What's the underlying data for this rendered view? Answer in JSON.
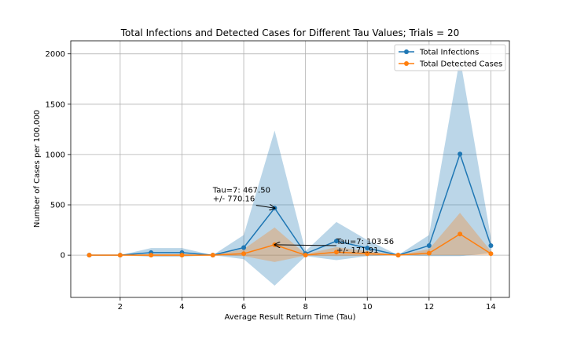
{
  "chart_data": {
    "type": "line",
    "title": "Total Infections and Detected Cases for Different Tau Values; Trials = 20",
    "xlabel": "Average Result Return Time (Tau)",
    "ylabel": "Number of Cases per 100,000",
    "xlim": [
      0.4,
      14.6
    ],
    "ylim": [
      -420,
      2130
    ],
    "xticks": [
      2,
      4,
      6,
      8,
      10,
      12,
      14
    ],
    "yticks": [
      0,
      500,
      1000,
      1500,
      2000
    ],
    "ytick_labels": [
      "0",
      "500",
      "1000",
      "1500",
      "2000"
    ],
    "grid": true,
    "legend_position": "top-right",
    "x": [
      1,
      2,
      3,
      4,
      5,
      6,
      7,
      8,
      9,
      10,
      11,
      12,
      13,
      14
    ],
    "series": [
      {
        "name": "Total Infections",
        "color": "#1f77b4",
        "values": [
          0,
          0,
          25,
          25,
          0,
          75,
          467.5,
          15,
          140,
          70,
          0,
          95,
          1005,
          95
        ],
        "band_lower": [
          0,
          0,
          -15,
          -15,
          0,
          -40,
          -302.66,
          -10,
          -50,
          -10,
          0,
          -10,
          -10,
          20
        ],
        "band_upper": [
          0,
          0,
          70,
          70,
          0,
          200,
          1237.66,
          40,
          330,
          150,
          0,
          200,
          1960,
          170
        ]
      },
      {
        "name": "Total Detected Cases",
        "color": "#ff7f0e",
        "values": [
          0,
          0,
          0,
          0,
          0,
          15,
          103.56,
          0,
          30,
          15,
          0,
          20,
          210,
          15
        ],
        "band_lower": [
          0,
          0,
          -10,
          -10,
          0,
          -10,
          -68.35,
          -5,
          -10,
          -5,
          0,
          0,
          0,
          5
        ],
        "band_upper": [
          0,
          0,
          10,
          10,
          0,
          60,
          275.47,
          10,
          80,
          40,
          0,
          60,
          420,
          40
        ]
      }
    ],
    "annotations": [
      {
        "line1": "Tau=7: 467.50",
        "line2": "+/- 770.16",
        "x": 7,
        "y": 467.5,
        "text_x": 5,
        "text_y": 620
      },
      {
        "line1": "Tau=7: 103.56",
        "line2": "+/- 171.91",
        "x": 7,
        "y": 103.56,
        "text_x": 9,
        "text_y": 110
      }
    ]
  }
}
